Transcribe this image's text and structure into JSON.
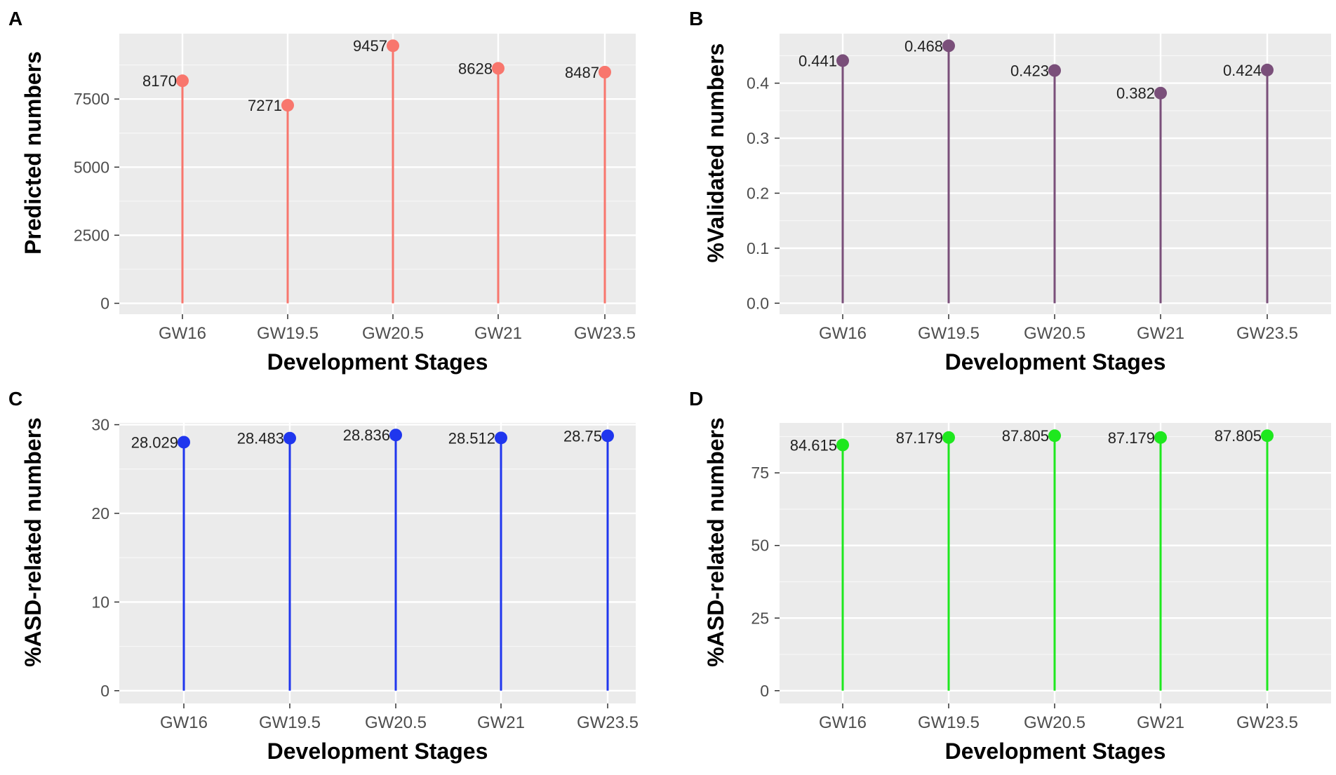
{
  "chart_data": [
    {
      "panel_label": "A",
      "type": "lollipop",
      "categories": [
        "GW16",
        "GW19.5",
        "GW20.5",
        "GW21",
        "GW23.5"
      ],
      "values": [
        8170,
        7271,
        9457,
        8628,
        8487
      ],
      "value_labels": [
        "8170",
        "7271",
        "9457",
        "8628",
        "8487"
      ],
      "xlabel": "Development Stages",
      "ylabel": "Predicted numbers",
      "ylim": [
        -400,
        9900
      ],
      "yticks": [
        0,
        2500,
        5000,
        7500
      ],
      "ytick_labels": [
        "0",
        "2500",
        "5000",
        "7500"
      ],
      "color": "#f8766d",
      "grid": true
    },
    {
      "panel_label": "B",
      "type": "lollipop",
      "categories": [
        "GW16",
        "GW19.5",
        "GW20.5",
        "GW21",
        "GW23.5"
      ],
      "values": [
        0.441,
        0.468,
        0.423,
        0.382,
        0.424
      ],
      "value_labels": [
        "0.441",
        "0.468",
        "0.423",
        "0.382",
        "0.424"
      ],
      "xlabel": "Development Stages",
      "ylabel": "%Validated numbers",
      "ylim": [
        -0.02,
        0.49
      ],
      "yticks": [
        0,
        0.1,
        0.2,
        0.3,
        0.4
      ],
      "ytick_labels": [
        "0.0",
        "0.1",
        "0.2",
        "0.3",
        "0.4"
      ],
      "color": "#7a4f7a",
      "grid": true
    },
    {
      "panel_label": "C",
      "type": "lollipop",
      "categories": [
        "GW16",
        "GW19.5",
        "GW20.5",
        "GW21",
        "GW23.5"
      ],
      "values": [
        28.029,
        28.483,
        28.836,
        28.512,
        28.75
      ],
      "value_labels": [
        "28.029",
        "28.483",
        "28.836",
        "28.512",
        "28.75"
      ],
      "xlabel": "Development Stages",
      "ylabel": "%ASD-related numbers",
      "ylim": [
        -1.44,
        30.2
      ],
      "yticks": [
        0,
        10,
        20,
        30
      ],
      "ytick_labels": [
        "0",
        "10",
        "20",
        "30"
      ],
      "color": "#1f36ee",
      "grid": true
    },
    {
      "panel_label": "D",
      "type": "lollipop",
      "categories": [
        "GW16",
        "GW19.5",
        "GW20.5",
        "GW21",
        "GW23.5"
      ],
      "values": [
        84.615,
        87.179,
        87.805,
        87.179,
        87.805
      ],
      "value_labels": [
        "84.615",
        "87.179",
        "87.805",
        "87.179",
        "87.805"
      ],
      "xlabel": "Development Stages",
      "ylabel": "%ASD-related numbers",
      "ylim": [
        -4.4,
        92.2
      ],
      "yticks": [
        0,
        25,
        50,
        75
      ],
      "ytick_labels": [
        "0",
        "25",
        "50",
        "75"
      ],
      "color": "#1ee81e",
      "grid": true
    }
  ]
}
